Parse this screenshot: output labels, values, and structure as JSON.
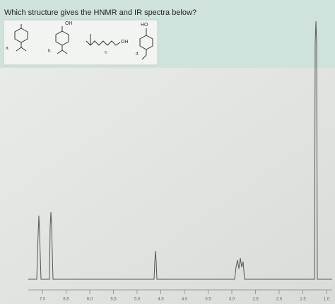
{
  "question": "Which structure gives the HNMR and IR spectra below?",
  "structures": [
    {
      "label": "a."
    },
    {
      "label": "b.",
      "group": "OH"
    },
    {
      "label": "c.",
      "group": "OH"
    },
    {
      "label": "d.",
      "group": "HO"
    }
  ],
  "spectrum": {
    "axis_labels": [
      "7.0",
      "6.5",
      "6.0",
      "5.5",
      "5.0",
      "4.5",
      "4.0",
      "3.5",
      "3.0",
      "2.5",
      "2.0",
      "1.5",
      "1.0"
    ]
  }
}
